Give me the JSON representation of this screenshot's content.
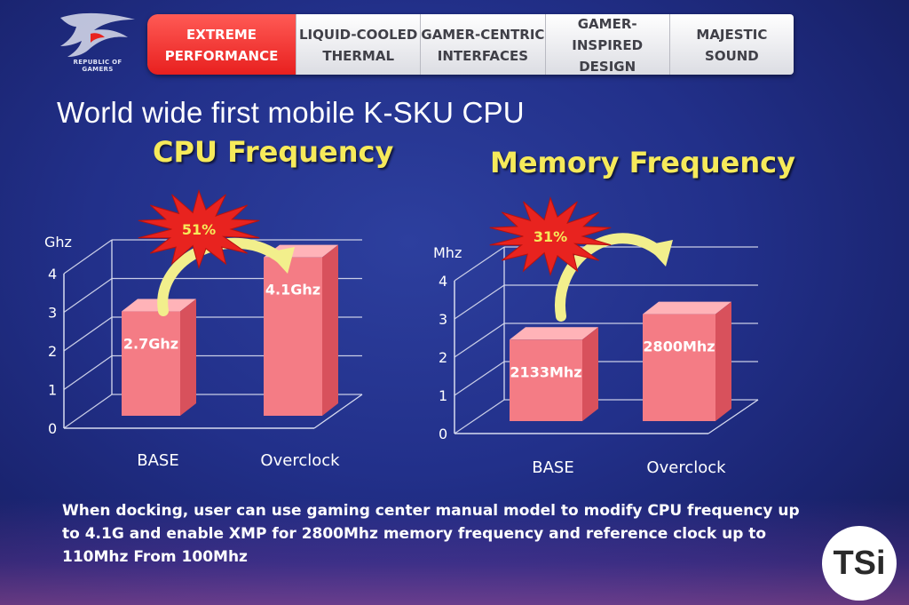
{
  "header": {
    "logo_text": "REPUBLIC OF\nGAMERS",
    "tabs": [
      {
        "label": "EXTREME\nPERFORMANCE",
        "active": true
      },
      {
        "label": "LIQUID-COOLED\nTHERMAL",
        "active": false
      },
      {
        "label": "GAMER-CENTRIC\nINTERFACES",
        "active": false
      },
      {
        "label": "GAMER-INSPIRED\nDESIGN",
        "active": false
      },
      {
        "label": "MAJESTIC\nSOUND",
        "active": false
      }
    ]
  },
  "headline": "World wide first mobile K-SKU CPU",
  "description": "When docking, user can use gaming center manual model to modify CPU frequency up to 4.1G and enable XMP for 2800Mhz memory frequency and reference clock up to 110Mhz From 100Mhz",
  "badge": "TSi",
  "colors": {
    "bar_front": "#f47c85",
    "bar_side": "#d8515c",
    "bar_top": "#ffb3b8",
    "title_yellow": "#f6ea5a",
    "starburst": "#e8231f",
    "arrow": "#f2ef8c"
  },
  "chart_data": [
    {
      "type": "bar",
      "title": "CPU Frequency",
      "ylabel": "Ghz",
      "categories": [
        "BASE",
        "Overclock"
      ],
      "values": [
        2.7,
        4.1
      ],
      "data_labels": [
        "2.7Ghz",
        "4.1Ghz"
      ],
      "yticks": [
        "0",
        "1",
        "2",
        "3",
        "4"
      ],
      "ylim": [
        0,
        4
      ],
      "increase_label": "51%"
    },
    {
      "type": "bar",
      "title": "Memory Frequency",
      "ylabel": "Mhz",
      "categories": [
        "BASE",
        "Overclock"
      ],
      "values": [
        2.133,
        2.8
      ],
      "data_labels": [
        "2133Mhz",
        "2800Mhz"
      ],
      "yticks": [
        "0",
        "1",
        "2",
        "3",
        "4"
      ],
      "ylim": [
        0,
        4
      ],
      "increase_label": "31%"
    }
  ]
}
